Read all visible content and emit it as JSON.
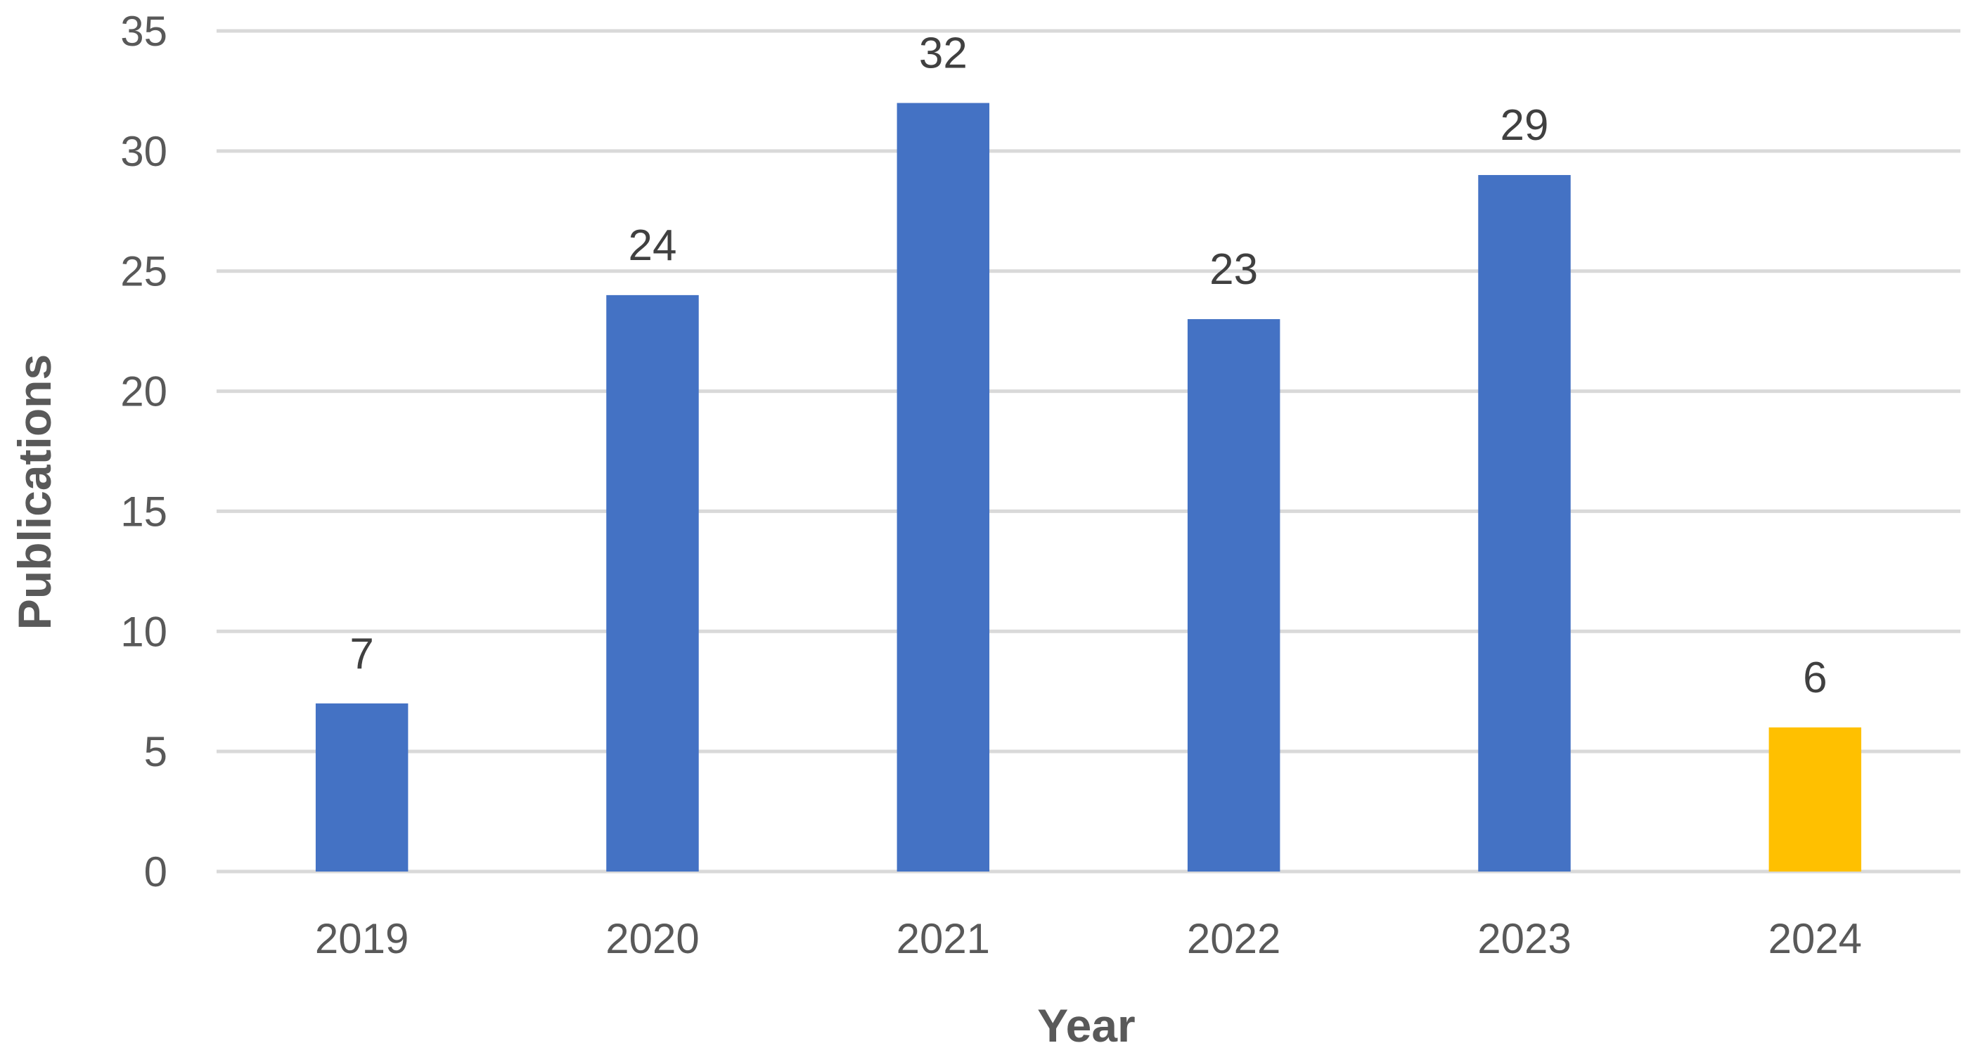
{
  "chart_data": {
    "type": "bar",
    "title": "",
    "xlabel": "Year",
    "ylabel": "Publications",
    "categories": [
      "2019",
      "2020",
      "2021",
      "2022",
      "2023",
      "2024"
    ],
    "values": [
      7,
      24,
      32,
      23,
      29,
      6
    ],
    "data_labels": [
      "7",
      "24",
      "32",
      "23",
      "29",
      "6"
    ],
    "bar_colors": [
      "#4472C4",
      "#4472C4",
      "#4472C4",
      "#4472C4",
      "#4472C4",
      "#FFC000"
    ],
    "ylim": [
      0,
      35
    ],
    "yticks": [
      0,
      5,
      10,
      15,
      20,
      25,
      30,
      35
    ],
    "ytick_labels": [
      "0",
      "5",
      "10",
      "15",
      "20",
      "25",
      "30",
      "35"
    ],
    "grid": true,
    "legend": "none",
    "colors": {
      "primary_bar": "#4472C4",
      "highlight_bar": "#FFC000",
      "gridline": "#D9D9D9",
      "text": "#595959"
    }
  }
}
